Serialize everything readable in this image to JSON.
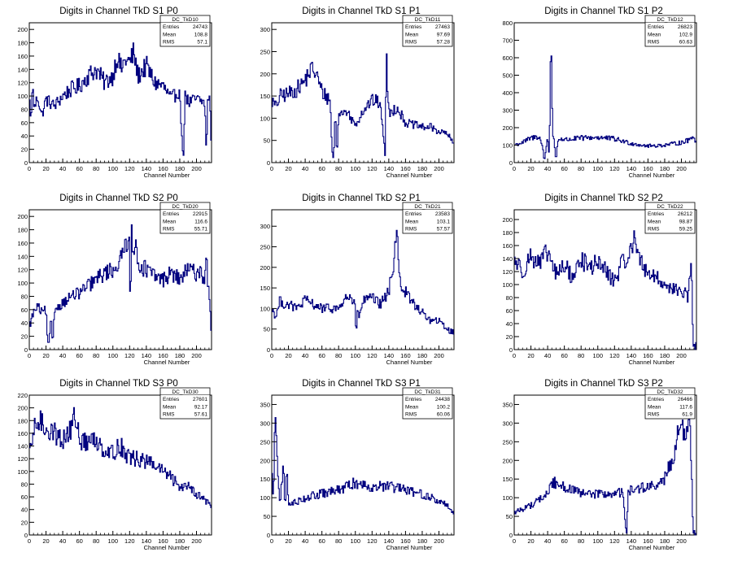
{
  "colors": {
    "line": "#00007f",
    "axis": "#000000",
    "background": "#ffffff"
  },
  "chart_data": [
    {
      "type": "histogram",
      "title": "Digits in Channel TkD S1 P0",
      "xlabel": "Channel Number",
      "xlim": [
        0,
        218
      ],
      "ylim": [
        0,
        210
      ],
      "xticks": [
        0,
        20,
        40,
        60,
        80,
        100,
        120,
        140,
        160,
        180,
        200
      ],
      "yticks": [
        0,
        20,
        40,
        60,
        80,
        100,
        120,
        140,
        160,
        180,
        200
      ],
      "stats": {
        "name": "DC_TkD10",
        "entries": "24743",
        "mean": "108.8",
        "rms": "57.1"
      },
      "profile_x": [
        0,
        2,
        4,
        6,
        10,
        15,
        20,
        30,
        40,
        50,
        60,
        70,
        80,
        90,
        100,
        105,
        110,
        115,
        120,
        125,
        130,
        140,
        150,
        160,
        170,
        180,
        182,
        185,
        186,
        188,
        190,
        200,
        210,
        212,
        213,
        214,
        216,
        218
      ],
      "profile_y": [
        100,
        60,
        120,
        80,
        100,
        70,
        95,
        85,
        100,
        110,
        115,
        130,
        140,
        120,
        130,
        160,
        140,
        155,
        150,
        165,
        130,
        145,
        120,
        115,
        95,
        110,
        40,
        5,
        110,
        100,
        90,
        95,
        90,
        5,
        80,
        100,
        100,
        10
      ]
    },
    {
      "type": "histogram",
      "title": "Digits in Channel TkD S1 P1",
      "xlabel": "Channel Number",
      "xlim": [
        0,
        218
      ],
      "ylim": [
        0,
        315
      ],
      "xticks": [
        0,
        20,
        40,
        60,
        80,
        100,
        120,
        140,
        160,
        180,
        200
      ],
      "yticks": [
        0,
        50,
        100,
        150,
        200,
        250,
        300
      ],
      "stats": {
        "name": "DC_TkD11",
        "entries": "27463",
        "mean": "97.69",
        "rms": "57.28"
      },
      "profile_x": [
        0,
        5,
        10,
        20,
        30,
        40,
        45,
        50,
        55,
        60,
        70,
        72,
        74,
        76,
        78,
        80,
        90,
        100,
        110,
        120,
        130,
        136,
        137,
        138,
        139,
        140,
        150,
        160,
        170,
        180,
        190,
        200,
        210,
        218
      ],
      "profile_y": [
        140,
        125,
        150,
        155,
        165,
        185,
        205,
        210,
        190,
        160,
        140,
        30,
        5,
        120,
        10,
        110,
        115,
        85,
        120,
        140,
        135,
        5,
        290,
        200,
        150,
        110,
        125,
        90,
        85,
        80,
        80,
        70,
        65,
        40
      ]
    },
    {
      "type": "histogram",
      "title": "Digits in Channel TkD S1 P2",
      "xlabel": "Channel Number",
      "xlim": [
        0,
        218
      ],
      "ylim": [
        0,
        800
      ],
      "xticks": [
        0,
        20,
        40,
        60,
        80,
        100,
        120,
        140,
        160,
        180,
        200
      ],
      "yticks": [
        0,
        100,
        200,
        300,
        400,
        500,
        600,
        700,
        800
      ],
      "stats": {
        "name": "DC_TkD12",
        "entries": "26823",
        "mean": "102.9",
        "rms": "60.63"
      },
      "profile_x": [
        0,
        10,
        20,
        30,
        34,
        36,
        40,
        42,
        44,
        46,
        48,
        50,
        52,
        56,
        60,
        80,
        100,
        120,
        140,
        160,
        180,
        200,
        210,
        214,
        218
      ],
      "profile_y": [
        100,
        115,
        140,
        150,
        90,
        5,
        150,
        30,
        760,
        160,
        120,
        5,
        120,
        140,
        130,
        140,
        145,
        135,
        110,
        95,
        100,
        115,
        130,
        160,
        110
      ]
    },
    {
      "type": "histogram",
      "title": "Digits in Channel TkD S2 P0",
      "xlabel": "Channel Number",
      "xlim": [
        0,
        218
      ],
      "ylim": [
        0,
        210
      ],
      "xticks": [
        0,
        20,
        40,
        60,
        80,
        100,
        120,
        140,
        160,
        180,
        200
      ],
      "yticks": [
        0,
        20,
        40,
        60,
        80,
        100,
        120,
        140,
        160,
        180,
        200
      ],
      "stats": {
        "name": "DC_TkD20",
        "entries": "22915",
        "mean": "116.6",
        "rms": "55.71"
      },
      "profile_x": [
        0,
        5,
        10,
        15,
        20,
        22,
        24,
        26,
        28,
        30,
        40,
        50,
        60,
        70,
        80,
        90,
        100,
        110,
        115,
        120,
        121,
        122,
        124,
        126,
        130,
        140,
        150,
        160,
        170,
        180,
        190,
        200,
        205,
        210,
        212,
        214,
        216,
        218
      ],
      "profile_y": [
        35,
        55,
        65,
        55,
        60,
        5,
        5,
        55,
        5,
        60,
        70,
        80,
        85,
        95,
        105,
        115,
        120,
        135,
        160,
        170,
        5,
        200,
        150,
        160,
        130,
        120,
        110,
        105,
        115,
        105,
        120,
        115,
        120,
        100,
        150,
        90,
        80,
        5
      ]
    },
    {
      "type": "histogram",
      "title": "Digits in Channel TkD S2 P1",
      "xlabel": "Channel Number",
      "xlim": [
        0,
        218
      ],
      "ylim": [
        0,
        340
      ],
      "xticks": [
        0,
        20,
        40,
        60,
        80,
        100,
        120,
        140,
        160,
        180,
        200
      ],
      "yticks": [
        0,
        50,
        100,
        150,
        200,
        250,
        300
      ],
      "stats": {
        "name": "DC_TkD21",
        "entries": "23583",
        "mean": "103.1",
        "rms": "57.57"
      },
      "profile_x": [
        0,
        5,
        10,
        15,
        20,
        30,
        40,
        60,
        80,
        90,
        95,
        100,
        101,
        102,
        104,
        110,
        120,
        130,
        140,
        145,
        150,
        152,
        155,
        160,
        170,
        180,
        190,
        200,
        210,
        218
      ],
      "profile_y": [
        100,
        80,
        120,
        110,
        110,
        100,
        120,
        100,
        100,
        130,
        120,
        110,
        5,
        100,
        80,
        120,
        125,
        110,
        140,
        200,
        300,
        200,
        150,
        140,
        110,
        90,
        70,
        70,
        50,
        40
      ]
    },
    {
      "type": "histogram",
      "title": "Digits in Channel TkD S2 P2",
      "xlabel": "Channel Number",
      "xlim": [
        0,
        218
      ],
      "ylim": [
        0,
        215
      ],
      "xticks": [
        0,
        20,
        40,
        60,
        80,
        100,
        120,
        140,
        160,
        180,
        200
      ],
      "yticks": [
        0,
        20,
        40,
        60,
        80,
        100,
        120,
        140,
        160,
        180,
        200
      ],
      "stats": {
        "name": "DC_TkD22",
        "entries": "26212",
        "mean": "98.87",
        "rms": "59.25"
      },
      "profile_x": [
        0,
        10,
        20,
        30,
        40,
        50,
        60,
        70,
        80,
        90,
        100,
        110,
        120,
        130,
        140,
        145,
        150,
        160,
        170,
        180,
        190,
        200,
        205,
        208,
        210,
        212,
        214,
        216,
        218
      ],
      "profile_y": [
        140,
        120,
        145,
        130,
        150,
        115,
        130,
        110,
        140,
        125,
        135,
        120,
        105,
        135,
        150,
        180,
        135,
        120,
        110,
        100,
        95,
        85,
        90,
        75,
        110,
        140,
        5,
        5,
        5
      ]
    },
    {
      "type": "histogram",
      "title": "Digits in Channel TkD S3 P0",
      "xlabel": "Channel Number",
      "xlim": [
        0,
        218
      ],
      "ylim": [
        0,
        220
      ],
      "xticks": [
        0,
        20,
        40,
        60,
        80,
        100,
        120,
        140,
        160,
        180,
        200
      ],
      "yticks": [
        0,
        20,
        40,
        60,
        80,
        100,
        120,
        140,
        160,
        180,
        200,
        220
      ],
      "stats": {
        "name": "DC_TkD30",
        "entries": "27601",
        "mean": "92.17",
        "rms": "57.61"
      },
      "profile_x": [
        0,
        5,
        10,
        20,
        30,
        40,
        50,
        55,
        60,
        70,
        80,
        90,
        100,
        110,
        120,
        130,
        140,
        150,
        160,
        170,
        180,
        190,
        200,
        210,
        215,
        218
      ],
      "profile_y": [
        120,
        160,
        180,
        170,
        160,
        150,
        165,
        190,
        150,
        145,
        150,
        135,
        130,
        140,
        120,
        120,
        115,
        110,
        100,
        90,
        75,
        80,
        65,
        55,
        50,
        40
      ]
    },
    {
      "type": "histogram",
      "title": "Digits in Channel TkD S3 P1",
      "xlabel": "Channel Number",
      "xlim": [
        0,
        218
      ],
      "ylim": [
        0,
        375
      ],
      "xticks": [
        0,
        20,
        40,
        60,
        80,
        100,
        120,
        140,
        160,
        180,
        200
      ],
      "yticks": [
        0,
        50,
        100,
        150,
        200,
        250,
        300,
        350
      ],
      "stats": {
        "name": "DC_TkD31",
        "entries": "24438",
        "mean": "100.2",
        "rms": "60.06"
      },
      "profile_x": [
        0,
        2,
        4,
        6,
        8,
        10,
        14,
        16,
        18,
        20,
        30,
        40,
        60,
        80,
        100,
        120,
        140,
        160,
        180,
        200,
        210,
        218
      ],
      "profile_y": [
        200,
        80,
        340,
        240,
        130,
        80,
        200,
        60,
        190,
        80,
        90,
        100,
        110,
        120,
        140,
        130,
        130,
        120,
        110,
        90,
        80,
        60
      ]
    },
    {
      "type": "histogram",
      "title": "Digits in Channel TkD S3 P2",
      "xlabel": "Channel Number",
      "xlim": [
        0,
        218
      ],
      "ylim": [
        0,
        375
      ],
      "xticks": [
        0,
        20,
        40,
        60,
        80,
        100,
        120,
        140,
        160,
        180,
        200
      ],
      "yticks": [
        0,
        50,
        100,
        150,
        200,
        250,
        300,
        350
      ],
      "stats": {
        "name": "DC_TkD32",
        "entries": "26466",
        "mean": "117.6",
        "rms": "61.9"
      },
      "profile_x": [
        0,
        10,
        20,
        30,
        40,
        45,
        50,
        60,
        70,
        80,
        100,
        120,
        130,
        134,
        135,
        136,
        140,
        160,
        170,
        180,
        185,
        190,
        195,
        200,
        205,
        210,
        212,
        214,
        216,
        218
      ],
      "profile_y": [
        60,
        70,
        80,
        95,
        110,
        140,
        140,
        130,
        120,
        110,
        110,
        110,
        115,
        5,
        5,
        120,
        120,
        130,
        130,
        150,
        180,
        210,
        260,
        300,
        250,
        330,
        180,
        5,
        5,
        5
      ]
    }
  ],
  "stats_labels": {
    "entries": "Entries",
    "mean": "Mean",
    "rms": "RMS"
  }
}
